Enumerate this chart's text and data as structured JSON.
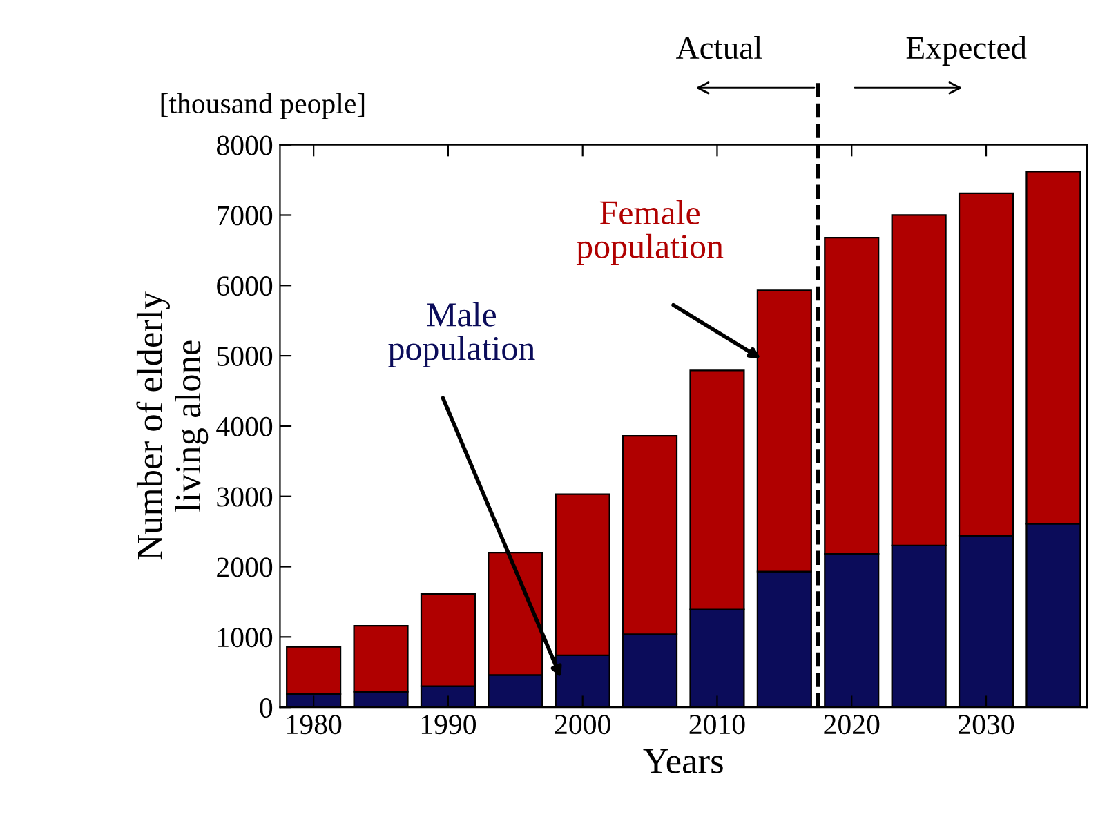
{
  "chart_data": {
    "type": "bar",
    "stacked": true,
    "xlabel": "Years",
    "ylabel": "Number of elderly\nliving alone",
    "x": [
      1980,
      1985,
      1990,
      1995,
      2000,
      2005,
      2010,
      2015,
      2020,
      2025,
      2030,
      2035
    ],
    "series": [
      {
        "name": "Male population",
        "color": "#0b0c5a",
        "values": [
          190,
          220,
          300,
          460,
          740,
          1040,
          1390,
          1930,
          2180,
          2300,
          2440,
          2610
        ]
      },
      {
        "name": "Female population",
        "color": "#b00000",
        "values": [
          670,
          940,
          1310,
          1740,
          2290,
          2820,
          3400,
          4000,
          4500,
          4700,
          4870,
          5010
        ]
      }
    ],
    "xlim": [
      1977.5,
      2037.5
    ],
    "xticks": [
      1980,
      1990,
      2000,
      2010,
      2020,
      2030
    ],
    "ylim": [
      0,
      8000
    ],
    "yticks": [
      0,
      1000,
      2000,
      3000,
      4000,
      5000,
      6000,
      7000,
      8000
    ],
    "ref_lines": [
      {
        "axis": "x",
        "value": 2017.5,
        "color": "#000000",
        "line_style": "dashed"
      }
    ],
    "annotations": [
      "[thousand people]",
      "Actual",
      "Expected"
    ],
    "grid": false
  }
}
